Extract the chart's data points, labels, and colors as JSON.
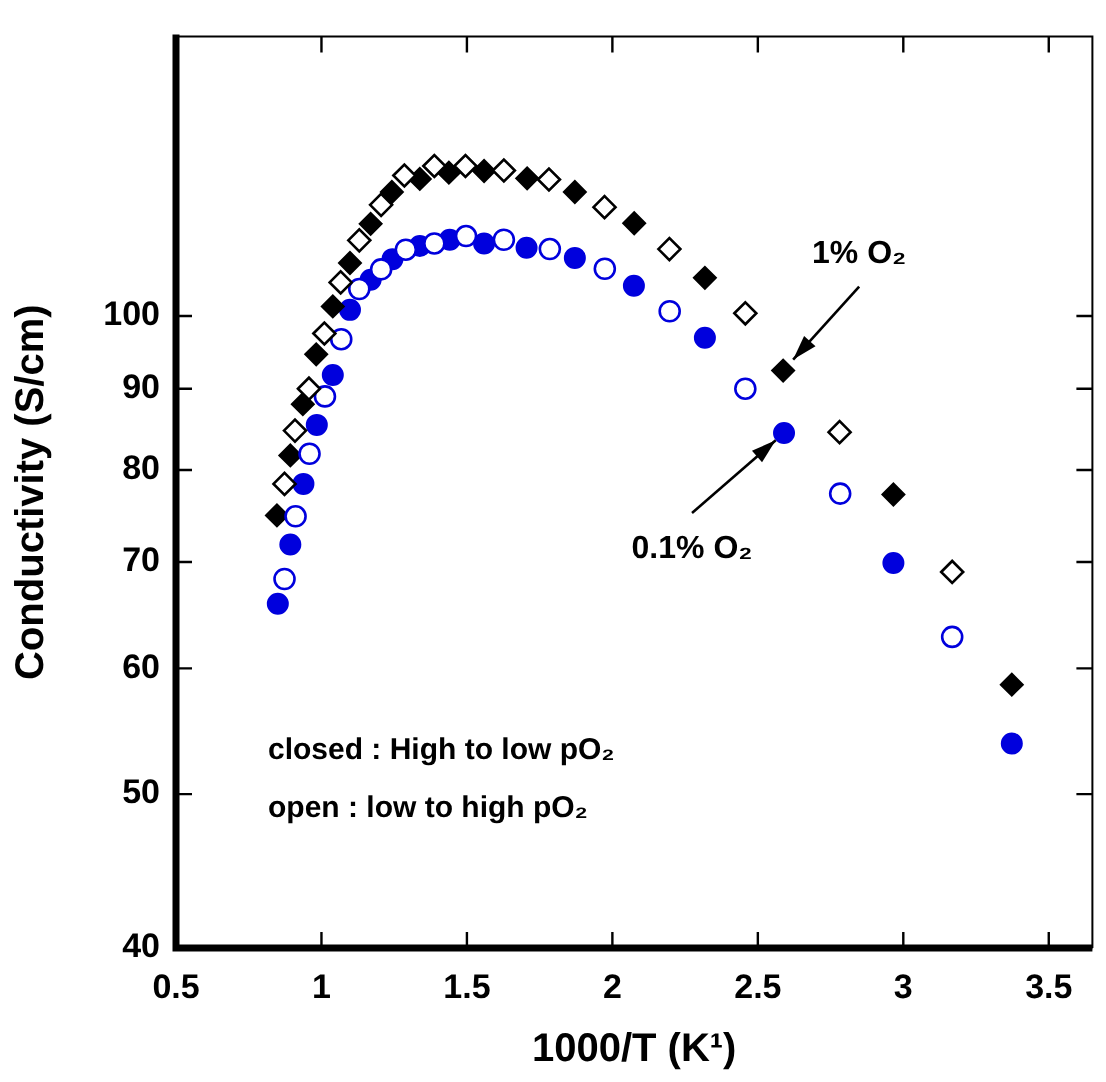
{
  "chart_data": {
    "type": "scatter",
    "xlabel": "1000/T (K¹)",
    "ylabel": "Conductivity (S/cm)",
    "xlim": [
      0.5,
      3.65
    ],
    "xticks": [
      0.5,
      1,
      1.5,
      2,
      2.5,
      3,
      3.5
    ],
    "ylim": [
      40,
      150
    ],
    "yticks": [
      40,
      50,
      60,
      70,
      80,
      90,
      100
    ],
    "log": "y",
    "grid": false,
    "legend": false,
    "series": [
      {
        "color": "#000000",
        "marker": "diamond",
        "x": [
          0.847,
          0.893,
          0.936,
          0.982,
          1.039,
          1.098,
          1.169,
          1.242,
          1.338,
          1.438,
          1.559,
          1.707,
          1.871,
          2.075,
          2.318,
          2.587,
          2.966,
          3.373
        ],
        "values": [
          74.9,
          81.7,
          88.0,
          94.6,
          101.4,
          108.0,
          114.3,
          119.7,
          122.0,
          123.1,
          123.4,
          122.1,
          119.7,
          114.4,
          105.7,
          92.4,
          77.2,
          58.6
        ]
      },
      {
        "color": "#000000",
        "marker": "diamond",
        "x": [
          0.873,
          0.909,
          0.957,
          1.01,
          1.066,
          1.13,
          1.205,
          1.285,
          1.388,
          1.495,
          1.627,
          1.782,
          1.973,
          2.196,
          2.457,
          2.781,
          3.168
        ],
        "values": [
          78.4,
          84.7,
          90.0,
          97.5,
          105.0,
          111.6,
          117.5,
          122.6,
          124.3,
          124.3,
          123.5,
          121.9,
          117.1,
          110.2,
          100.4,
          84.5,
          69.0
        ]
      },
      {
        "color": "#0000dd",
        "marker": "circle",
        "x": [
          0.85,
          0.893,
          0.938,
          0.984,
          1.039,
          1.098,
          1.169,
          1.244,
          1.338,
          1.441,
          1.559,
          1.705,
          1.871,
          2.074,
          2.318,
          2.59,
          2.966,
          3.373
        ],
        "values": [
          65.9,
          71.8,
          78.4,
          85.4,
          91.8,
          100.9,
          105.4,
          108.6,
          110.7,
          111.7,
          111.1,
          110.4,
          108.8,
          104.5,
          96.9,
          84.4,
          69.9,
          53.8
        ]
      },
      {
        "color": "#0000dd",
        "marker": "circle",
        "x": [
          0.873,
          0.911,
          0.959,
          1.012,
          1.068,
          1.13,
          1.205,
          1.29,
          1.388,
          1.497,
          1.627,
          1.785,
          1.974,
          2.197,
          2.457,
          2.783,
          3.168
        ],
        "values": [
          68.3,
          74.8,
          81.9,
          89.0,
          96.7,
          104.0,
          107.0,
          110.1,
          111.1,
          112.3,
          111.7,
          110.2,
          107.1,
          100.7,
          90.0,
          77.3,
          62.8
        ]
      }
    ],
    "annotations": [
      {
        "text": "1% O₂",
        "x": 2.587,
        "y": 92.4
      },
      {
        "text": "0.1% O₂",
        "x": 2.59,
        "y": 84.4
      },
      "closed : High to low pO₂",
      "open : low to high pO₂"
    ]
  }
}
